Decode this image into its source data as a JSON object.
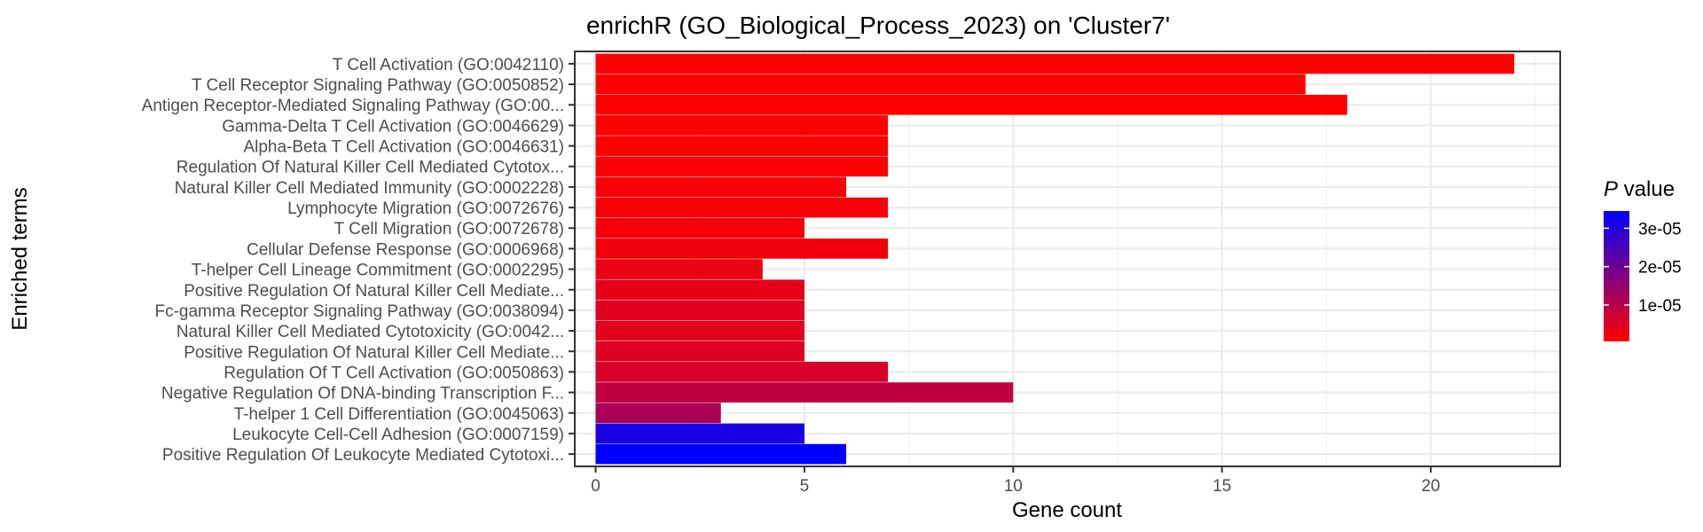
{
  "chart_data": {
    "type": "bar",
    "orientation": "horizontal",
    "title": "enrichR (GO_Biological_Process_2023) on 'Cluster7'",
    "xlabel": "Gene count",
    "ylabel": "Enriched terms",
    "xlim": [
      -0.5,
      23.1
    ],
    "xticks": [
      0,
      5,
      10,
      15,
      20
    ],
    "grid": true,
    "legend": {
      "title_italic": "P",
      "title_rest": " value",
      "placement": "right",
      "type": "colorbar",
      "ticks": [
        {
          "value": 3e-05,
          "label": "3e-05"
        },
        {
          "value": 2e-05,
          "label": "2e-05"
        },
        {
          "value": 1e-05,
          "label": "1e-05"
        }
      ],
      "low_color": "#ff0000",
      "high_color": "#0000ff",
      "pmin": 5e-07,
      "pmax": 3.45e-05
    },
    "categories": [
      "T Cell Activation (GO:0042110)",
      "T Cell Receptor Signaling Pathway (GO:0050852)",
      "Antigen Receptor-Mediated Signaling Pathway (GO:00...",
      "Gamma-Delta T Cell Activation (GO:0046629)",
      "Alpha-Beta T Cell Activation (GO:0046631)",
      "Regulation Of Natural Killer Cell Mediated Cytotox...",
      "Natural Killer Cell Mediated Immunity (GO:0002228)",
      "Lymphocyte Migration (GO:0072676)",
      "T Cell Migration (GO:0072678)",
      "Cellular Defense Response (GO:0006968)",
      "T-helper Cell Lineage Commitment (GO:0002295)",
      "Positive Regulation Of Natural Killer Cell Mediate...",
      "Fc-gamma Receptor Signaling Pathway (GO:0038094)",
      "Natural Killer Cell Mediated Cytotoxicity (GO:0042...",
      "Positive Regulation Of Natural Killer Cell Mediate...",
      "Regulation Of T Cell Activation (GO:0050863)",
      "Negative Regulation Of DNA-binding Transcription F...",
      "T-helper 1 Cell Differentiation (GO:0045063)",
      "Leukocyte Cell-Cell Adhesion (GO:0007159)",
      "Positive Regulation Of Leukocyte Mediated Cytotoxi..."
    ],
    "values": [
      22,
      17,
      18,
      7,
      7,
      7,
      6,
      7,
      5,
      7,
      4,
      5,
      5,
      5,
      5,
      7,
      10,
      3,
      5,
      6
    ],
    "pvalues": [
      5e-07,
      5e-07,
      5e-07,
      8e-07,
      8e-07,
      1e-06,
      1.5e-06,
      1.5e-06,
      2e-06,
      2e-06,
      3e-06,
      4e-06,
      4.5e-06,
      4.5e-06,
      5e-06,
      6e-06,
      9e-06,
      1.2e-05,
      3.1e-05,
      3.45e-05
    ]
  }
}
